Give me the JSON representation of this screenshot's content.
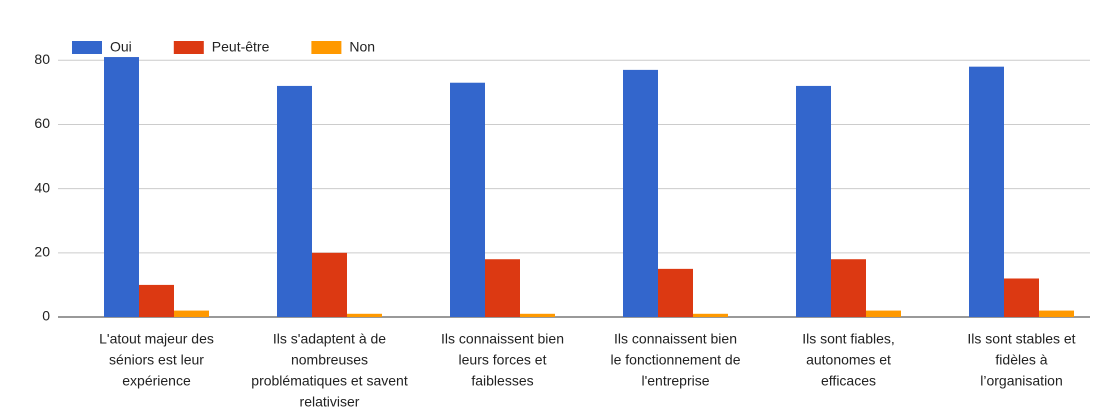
{
  "chart_data": {
    "type": "bar",
    "categories": [
      [
        "L'atout majeur des",
        "séniors est leur",
        "expérience"
      ],
      [
        "Ils s'adaptent à de",
        "nombreuses",
        "problématiques et savent",
        "relativiser"
      ],
      [
        "Ils connaissent bien",
        "leurs forces et",
        "faiblesses"
      ],
      [
        "Ils connaissent bien",
        "le fonctionnement de",
        "l'entreprise"
      ],
      [
        "Ils sont fiables,",
        "autonomes et",
        "efficaces"
      ],
      [
        "Ils sont stables et",
        "fidèles à",
        "l’organisation"
      ]
    ],
    "series": [
      {
        "name": "Oui",
        "color": "#3366cc",
        "values": [
          81,
          72,
          73,
          77,
          72,
          78
        ]
      },
      {
        "name": "Peut-être",
        "color": "#dc3912",
        "values": [
          10,
          20,
          18,
          15,
          18,
          12
        ]
      },
      {
        "name": "Non",
        "color": "#ff9900",
        "values": [
          2,
          1,
          1,
          1,
          2,
          2
        ]
      }
    ],
    "ylim": [
      0,
      86
    ],
    "yticks": [
      0,
      20,
      40,
      60,
      80
    ],
    "grid": true,
    "legend": "top-left"
  }
}
